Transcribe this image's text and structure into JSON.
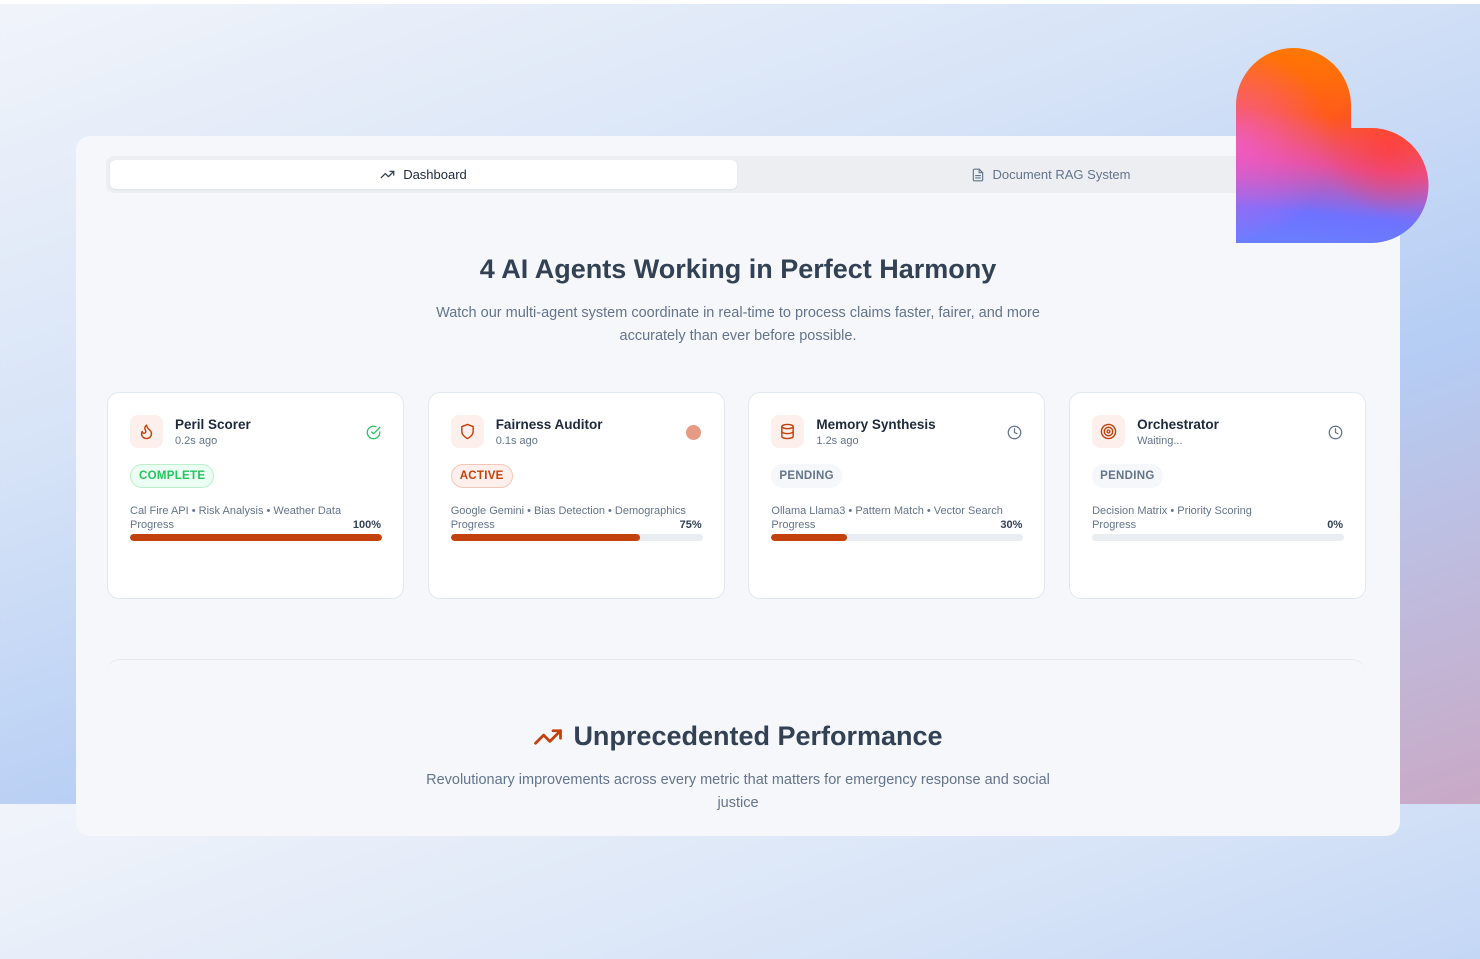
{
  "tabs": [
    {
      "label": "Dashboard",
      "icon": "trending-up-icon",
      "active": true
    },
    {
      "label": "Document RAG System",
      "icon": "file-text-icon",
      "active": false
    }
  ],
  "hero": {
    "title": "4 AI Agents Working in Perfect Harmony",
    "subtitle": "Watch our multi-agent system coordinate in real-time to process claims faster, fairer, and more accurately than ever before possible."
  },
  "agents": [
    {
      "name": "Peril Scorer",
      "time": "0.2s ago",
      "icon": "flame-icon",
      "status_icon": "check-circle-icon",
      "badge": "COMPLETE",
      "tags": "Cal Fire API • Risk Analysis • Weather Data",
      "progress_label": "Progress",
      "progress": 100,
      "progress_text": "100%"
    },
    {
      "name": "Fairness Auditor",
      "time": "0.1s ago",
      "icon": "shield-icon",
      "status_icon": "active-dot-icon",
      "badge": "ACTIVE",
      "tags": "Google Gemini • Bias Detection • Demographics",
      "progress_label": "Progress",
      "progress": 75,
      "progress_text": "75%"
    },
    {
      "name": "Memory Synthesis",
      "time": "1.2s ago",
      "icon": "database-icon",
      "status_icon": "clock-icon",
      "badge": "PENDING",
      "tags": "Ollama Llama3 • Pattern Match • Vector Search",
      "progress_label": "Progress",
      "progress": 30,
      "progress_text": "30%"
    },
    {
      "name": "Orchestrator",
      "time": "Waiting...",
      "icon": "target-icon",
      "status_icon": "clock-icon",
      "badge": "PENDING",
      "tags": "Decision Matrix • Priority Scoring",
      "progress_label": "Progress",
      "progress": 0,
      "progress_text": "0%"
    }
  ],
  "performance": {
    "title": "Unprecedented Performance",
    "subtitle": "Revolutionary improvements across every metric that matters for emergency response and social justice"
  },
  "colors": {
    "accent": "#c2410c",
    "complete": "#22c55e",
    "text": "#334155"
  }
}
